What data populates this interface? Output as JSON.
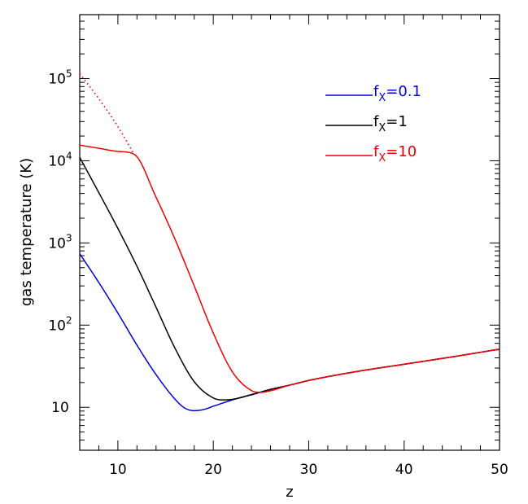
{
  "chart_data": {
    "type": "line",
    "xlabel": "z",
    "ylabel": "gas temperature (K)",
    "xlim": [
      6,
      50
    ],
    "ylim": [
      3,
      600000
    ],
    "yscale": "log",
    "x_ticks": [
      {
        "value": 10,
        "label": "10"
      },
      {
        "value": 20,
        "label": "20"
      },
      {
        "value": 30,
        "label": "30"
      },
      {
        "value": 40,
        "label": "40"
      },
      {
        "value": 50,
        "label": "50"
      }
    ],
    "y_ticks": [
      {
        "value": 10,
        "label": "10",
        "exp": ""
      },
      {
        "value": 100,
        "label": "10",
        "exp": "2"
      },
      {
        "value": 1000,
        "label": "10",
        "exp": "3"
      },
      {
        "value": 10000,
        "label": "10",
        "exp": "4"
      },
      {
        "value": 100000,
        "label": "10",
        "exp": "5"
      }
    ],
    "legend_position": "top-right",
    "series": [
      {
        "name": "f_X=0.1",
        "legend_label": {
          "base": "f",
          "sub": "X",
          "rest": "=0.1"
        },
        "color": "#0000dd",
        "style": "solid",
        "points": [
          [
            6,
            740
          ],
          [
            8,
            330
          ],
          [
            10,
            140
          ],
          [
            12,
            57
          ],
          [
            14,
            25
          ],
          [
            16,
            12.5
          ],
          [
            17,
            9.8
          ],
          [
            18,
            9.1
          ],
          [
            19,
            9.4
          ],
          [
            20,
            10.3
          ],
          [
            22,
            12.3
          ],
          [
            24,
            14.3
          ],
          [
            26,
            16.5
          ],
          [
            28,
            18.6
          ],
          [
            30,
            21.2
          ],
          [
            35,
            27.2
          ],
          [
            40,
            33.4
          ],
          [
            45,
            41
          ],
          [
            50,
            51
          ]
        ]
      },
      {
        "name": "f_X=1",
        "legend_label": {
          "base": "f",
          "sub": "X",
          "rest": "=1"
        },
        "color": "#000000",
        "style": "solid",
        "points": [
          [
            6,
            11000
          ],
          [
            8,
            4100
          ],
          [
            10,
            1500
          ],
          [
            12,
            520
          ],
          [
            14,
            165
          ],
          [
            16,
            52
          ],
          [
            18,
            20.5
          ],
          [
            20,
            13
          ],
          [
            21,
            12.3
          ],
          [
            22,
            12.5
          ],
          [
            24,
            14.2
          ],
          [
            26,
            16.5
          ],
          [
            28,
            18.6
          ],
          [
            30,
            21.2
          ],
          [
            35,
            27.2
          ],
          [
            40,
            33.4
          ],
          [
            45,
            41
          ],
          [
            50,
            51
          ]
        ]
      },
      {
        "name": "f_X=10",
        "legend_label": {
          "base": "f",
          "sub": "X",
          "rest": "=10"
        },
        "color": "#ee0000",
        "style": "solid",
        "points": [
          [
            6,
            15500
          ],
          [
            8,
            14200
          ],
          [
            10,
            13000
          ],
          [
            11.7,
            12000
          ],
          [
            14,
            3600
          ],
          [
            16,
            1100
          ],
          [
            18,
            300
          ],
          [
            20,
            80
          ],
          [
            22,
            27
          ],
          [
            24,
            16
          ],
          [
            25,
            15.2
          ],
          [
            26,
            15.9
          ],
          [
            28,
            18.6
          ],
          [
            30,
            21.2
          ],
          [
            35,
            27.2
          ],
          [
            40,
            33.4
          ],
          [
            45,
            41
          ],
          [
            50,
            51
          ]
        ]
      },
      {
        "name": "",
        "color": "#ee0000",
        "style": "dotted",
        "points": [
          [
            6,
            115000
          ],
          [
            8,
            57000
          ],
          [
            10,
            26000
          ],
          [
            11.7,
            12000
          ]
        ]
      }
    ]
  }
}
